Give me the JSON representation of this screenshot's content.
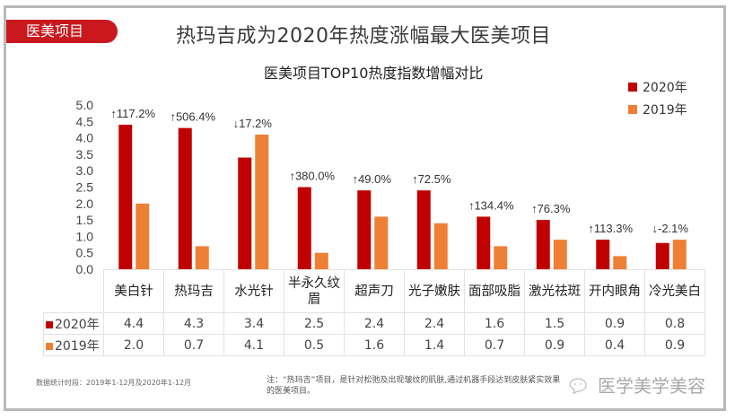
{
  "header": {
    "tag": "医美项目",
    "title": "热玛吉成为2020年热度涨幅最大医美项目"
  },
  "chart_data": {
    "type": "bar",
    "title": "医美项目TOP10热度指数增幅对比",
    "categories": [
      "美白针",
      "热玛吉",
      "水光针",
      "半永久纹眉",
      "超声刀",
      "光子嫩肤",
      "面部吸脂",
      "激光祛斑",
      "开内眼角",
      "冷光美白"
    ],
    "category_lines": [
      [
        "美白针"
      ],
      [
        "热玛吉"
      ],
      [
        "水光针"
      ],
      [
        "半永久纹",
        "眉"
      ],
      [
        "超声刀"
      ],
      [
        "光子嫩肤"
      ],
      [
        "面部吸脂"
      ],
      [
        "激光祛斑"
      ],
      [
        "开内眼角"
      ],
      [
        "冷光美白"
      ]
    ],
    "series": [
      {
        "name": "2020年",
        "color": "#c00000",
        "values": [
          4.4,
          4.3,
          3.4,
          2.5,
          2.4,
          2.4,
          1.6,
          1.5,
          0.9,
          0.8
        ]
      },
      {
        "name": "2019年",
        "color": "#ed8035",
        "values": [
          2.0,
          0.7,
          4.1,
          0.5,
          1.6,
          1.4,
          0.7,
          0.9,
          0.4,
          0.9
        ]
      }
    ],
    "value_labels": [
      "2020年",
      "2019年"
    ],
    "table_values": [
      [
        "4.4",
        "4.3",
        "3.4",
        "2.5",
        "2.4",
        "2.4",
        "1.6",
        "1.5",
        "0.9",
        "0.8"
      ],
      [
        "2.0",
        "0.7",
        "4.1",
        "0.5",
        "1.6",
        "1.4",
        "0.7",
        "0.9",
        "0.4",
        "0.9"
      ]
    ],
    "annotations": [
      "↑117.2%",
      "↑506.4%",
      "↓17.2%",
      "↑380.0%",
      "↑49.0%",
      "↑72.5%",
      "↑134.4%",
      "↑76.3%",
      "↑113.3%",
      "↓-2.1%"
    ],
    "yticks": [
      "0.0",
      "0.5",
      "1.0",
      "1.5",
      "2.0",
      "2.5",
      "3.0",
      "3.5",
      "4.0",
      "4.5",
      "5.0"
    ],
    "ylim": [
      0,
      5
    ],
    "legend": [
      "2020年",
      "2019年"
    ],
    "legend_placement": "top-right",
    "grid": false,
    "xlabel": "",
    "ylabel": ""
  },
  "footer": {
    "period": "数据统计时段：2019年1-12月及2020年1-12月",
    "note": "注：“热玛吉”项目，是针对松弛及出现皱纹的肌肤,通过机器手段达到皮肤紧实效果的医美项目。",
    "watermark": "医学美学美容"
  }
}
